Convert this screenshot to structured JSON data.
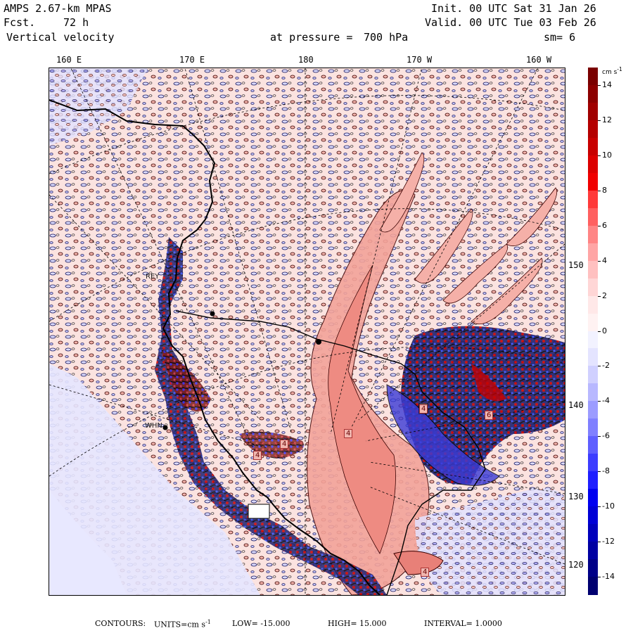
{
  "header": {
    "model": "AMPS 2.67-km MPAS",
    "fcst_label": "Fcst.",
    "fcst_value": "72 h",
    "field": "Vertical velocity",
    "init": "Init. 00 UTC Sat 31 Jan 26",
    "valid": "Valid. 00 UTC Tue 03 Feb 26",
    "level_label": "at pressure =",
    "level_value": "700 hPa",
    "smoothing": "sm= 6"
  },
  "top_longitudes": [
    "160 E",
    "170 E",
    "180",
    "170 W",
    "160 W"
  ],
  "right_longitudes": [
    "150 W",
    "140 W",
    "130 W",
    "120 W"
  ],
  "stations": [
    "REY",
    "WHN"
  ],
  "extrema_labels": [
    "4",
    "4",
    "4",
    "4",
    "6",
    "4"
  ],
  "colorbar": {
    "unit_text": "cm s",
    "unit_exp": "-1",
    "labels": [
      "14",
      "12",
      "10",
      "8",
      "6",
      "4",
      "2",
      "0",
      "-2",
      "-4",
      "-6",
      "-8",
      "-10",
      "-12",
      "-14"
    ],
    "colors": [
      "#7a0000",
      "#8c0000",
      "#a00000",
      "#b40000",
      "#c80000",
      "#dc0000",
      "#f00000",
      "#ff3a3a",
      "#ff6060",
      "#ff8585",
      "#ffa5a5",
      "#ffc0c0",
      "#ffd6d6",
      "#ffe8e8",
      "#fff2f2",
      "#f2f2ff",
      "#e4e4ff",
      "#d0d0ff",
      "#b8b8ff",
      "#9c9cff",
      "#8080ff",
      "#5f5fff",
      "#3d3dff",
      "#1f1fff",
      "#0000f0",
      "#0000d6",
      "#0000bc",
      "#0000a2",
      "#000088",
      "#000070"
    ]
  },
  "footer": {
    "contours": "CONTOURS:",
    "units": "UNITS=cm s",
    "units_exp": "-1",
    "low": "LOW= -15.000",
    "high": "HIGH= 15.000",
    "interval": "INTERVAL= 1.0000"
  }
}
